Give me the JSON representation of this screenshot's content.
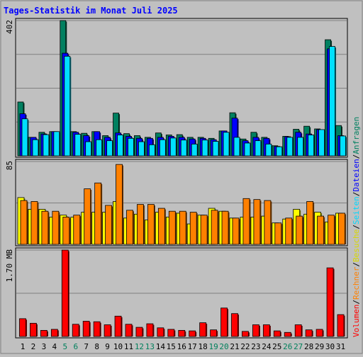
{
  "chart_data": {
    "title": "Tages-Statistik im Monat Juli 2025",
    "categories": [
      "1",
      "2",
      "3",
      "4",
      "5",
      "6",
      "7",
      "8",
      "9",
      "10",
      "11",
      "12",
      "13",
      "14",
      "15",
      "16",
      "17",
      "18",
      "19",
      "20",
      "21",
      "22",
      "23",
      "24",
      "25",
      "26",
      "27",
      "28",
      "29",
      "30",
      "31"
    ],
    "weekend_days": [
      "5",
      "6",
      "12",
      "13",
      "19",
      "20",
      "26",
      "27"
    ],
    "colors": {
      "background": "#c0c0c0",
      "frame_border": "#808080",
      "title": "#0000ff",
      "plot_bg": "#c0c0c0",
      "grid": "#808080",
      "weekday_label": "#000000",
      "weekend_label": "#00805c",
      "anfragen": "#008060",
      "dateien": "#0000ff",
      "seiten": "#00e0ff",
      "besuche": "#ffff00",
      "rechner": "#ff8000",
      "volumen": "#ff0000"
    },
    "panels": [
      {
        "id": "requests",
        "type": "bar",
        "ylabel": "402",
        "ylim": [
          0,
          402
        ],
        "series": [
          {
            "name": "Anfragen",
            "color": "#008060",
            "values": [
              160,
              55,
              70,
              72,
              402,
              72,
              67,
              72,
              60,
              127,
              66,
              60,
              55,
              68,
              62,
              63,
              55,
              55,
              52,
              74,
              128,
              50,
              70,
              55,
              30,
              58,
              79,
              88,
              80,
              345,
              90
            ]
          },
          {
            "name": "Dateien",
            "color": "#0000ff",
            "values": [
              125,
              55,
              65,
              72,
              305,
              70,
              60,
              72,
              55,
              68,
              58,
              52,
              52,
              55,
              58,
              55,
              50,
              52,
              48,
              74,
              112,
              45,
              55,
              52,
              28,
              57,
              70,
              65,
              78,
              318,
              60
            ]
          },
          {
            "name": "Seiten",
            "color": "#00e0ff",
            "values": [
              110,
              48,
              63,
              72,
              296,
              64,
              42,
              48,
              45,
              62,
              52,
              42,
              33,
              48,
              53,
              47,
              35,
              47,
              43,
              70,
              55,
              38,
              45,
              35,
              27,
              55,
              55,
              62,
              78,
              325,
              59
            ]
          }
        ]
      },
      {
        "id": "visits",
        "type": "bar",
        "ylabel": "85",
        "ylim": [
          0,
          85
        ],
        "series": [
          {
            "name": "Besuche",
            "color": "#ffff00",
            "values": [
              48,
              36,
              36,
              28,
              30,
              28,
              33,
              33,
              33,
              44,
              27,
              31,
              25,
              33,
              28,
              32,
              21,
              30,
              37,
              34,
              27,
              28,
              28,
              29,
              22,
              26,
              36,
              31,
              33,
              23,
              32
            ]
          },
          {
            "name": "Rechner",
            "color": "#ff8000",
            "values": [
              45,
              44,
              34,
              34,
              28,
              30,
              57,
              63,
              40,
              82,
              35,
              41,
              41,
              37,
              34,
              34,
              33,
              30,
              35,
              34,
              27,
              47,
              46,
              45,
              22,
              27,
              29,
              44,
              29,
              30,
              32
            ]
          }
        ]
      },
      {
        "id": "volume",
        "type": "bar",
        "ylabel": "1.70 MB",
        "ylim": [
          0,
          1.7
        ],
        "series": [
          {
            "name": "Volumen",
            "color": "#ff0000",
            "values": [
              0.35,
              0.26,
              0.12,
              0.14,
              1.7,
              0.24,
              0.3,
              0.29,
              0.23,
              0.4,
              0.24,
              0.18,
              0.25,
              0.17,
              0.14,
              0.12,
              0.11,
              0.27,
              0.13,
              0.56,
              0.45,
              0.1,
              0.23,
              0.23,
              0.11,
              0.08,
              0.23,
              0.13,
              0.14,
              1.35,
              0.43
            ]
          }
        ]
      }
    ],
    "side_legend": [
      {
        "label": "Volumen",
        "color": "#ff0000"
      },
      {
        "sep": "/"
      },
      {
        "label": "Rechner",
        "color": "#ff8000"
      },
      {
        "sep": "/"
      },
      {
        "label": "Besuche",
        "color": "#d8d800"
      },
      {
        "sep": "/"
      },
      {
        "label": "Seiten",
        "color": "#00d8ff"
      },
      {
        "sep": "/"
      },
      {
        "label": "Dateien",
        "color": "#0000ff"
      },
      {
        "sep": "/"
      },
      {
        "label": "Anfragen",
        "color": "#008060"
      }
    ]
  }
}
